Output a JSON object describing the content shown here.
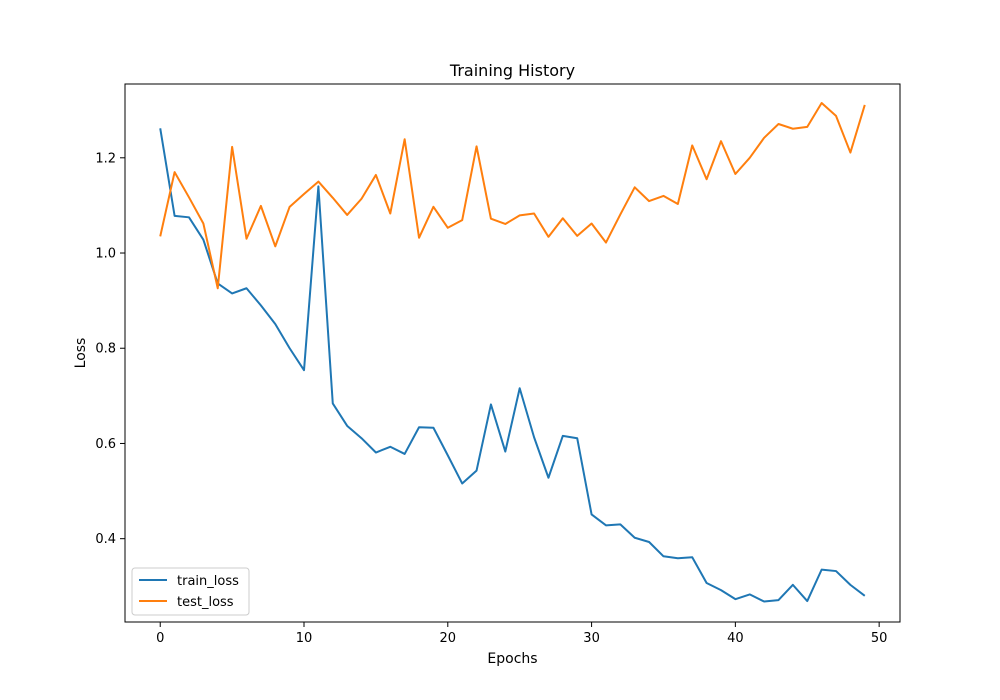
{
  "chart_data": {
    "type": "line",
    "title": "Training History",
    "xlabel": "Epochs",
    "ylabel": "Loss",
    "xlim": [
      -2.45,
      51.45
    ],
    "ylim": [
      0.225,
      1.355
    ],
    "xticks": [
      0,
      10,
      20,
      30,
      40,
      50
    ],
    "yticks": [
      0.4,
      0.6,
      0.8,
      1.0,
      1.2
    ],
    "xtick_labels": [
      "0",
      "10",
      "20",
      "30",
      "40",
      "50"
    ],
    "ytick_labels": [
      "0.4",
      "0.6",
      "0.8",
      "1.0",
      "1.2"
    ],
    "grid": false,
    "legend_position": "lower-left",
    "x": [
      0,
      1,
      2,
      3,
      4,
      5,
      6,
      7,
      8,
      9,
      10,
      11,
      12,
      13,
      14,
      15,
      16,
      17,
      18,
      19,
      20,
      21,
      22,
      23,
      24,
      25,
      26,
      27,
      28,
      29,
      30,
      31,
      32,
      33,
      34,
      35,
      36,
      37,
      38,
      39,
      40,
      41,
      42,
      43,
      44,
      45,
      46,
      47,
      48,
      49
    ],
    "series": [
      {
        "name": "train_loss",
        "color": "#1f77b4",
        "values": [
          1.262,
          1.078,
          1.075,
          1.028,
          0.936,
          0.915,
          0.926,
          0.89,
          0.851,
          0.8,
          0.754,
          1.14,
          0.684,
          0.637,
          0.611,
          0.581,
          0.593,
          0.578,
          0.634,
          0.633,
          0.575,
          0.516,
          0.543,
          0.682,
          0.583,
          0.716,
          0.613,
          0.528,
          0.616,
          0.611,
          0.451,
          0.428,
          0.43,
          0.402,
          0.393,
          0.363,
          0.359,
          0.361,
          0.307,
          0.292,
          0.273,
          0.283,
          0.268,
          0.271,
          0.303,
          0.269,
          0.335,
          0.332,
          0.303,
          0.28
        ]
      },
      {
        "name": "test_loss",
        "color": "#ff7f0e",
        "values": [
          1.035,
          1.17,
          1.117,
          1.062,
          0.926,
          1.223,
          1.03,
          1.099,
          1.014,
          1.097,
          1.124,
          1.15,
          1.116,
          1.08,
          1.114,
          1.164,
          1.083,
          1.239,
          1.032,
          1.097,
          1.053,
          1.069,
          1.224,
          1.072,
          1.061,
          1.079,
          1.083,
          1.034,
          1.073,
          1.036,
          1.062,
          1.022,
          1.081,
          1.138,
          1.109,
          1.12,
          1.103,
          1.226,
          1.155,
          1.235,
          1.166,
          1.2,
          1.242,
          1.271,
          1.261,
          1.265,
          1.315,
          1.288,
          1.211,
          1.311
        ]
      }
    ]
  }
}
